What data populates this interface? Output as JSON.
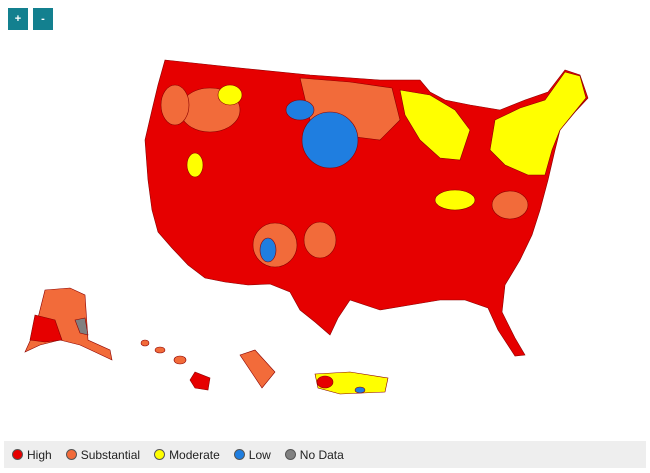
{
  "controls": {
    "zoom_in": "+",
    "zoom_out": "-"
  },
  "legend": {
    "items": [
      {
        "name": "High",
        "color": "#e60000"
      },
      {
        "name": "Substantial",
        "color": "#f26b3a"
      },
      {
        "name": "Moderate",
        "color": "#ffff00"
      },
      {
        "name": "Low",
        "color": "#1f7ee0"
      },
      {
        "name": "No Data",
        "color": "#808080"
      }
    ]
  }
}
